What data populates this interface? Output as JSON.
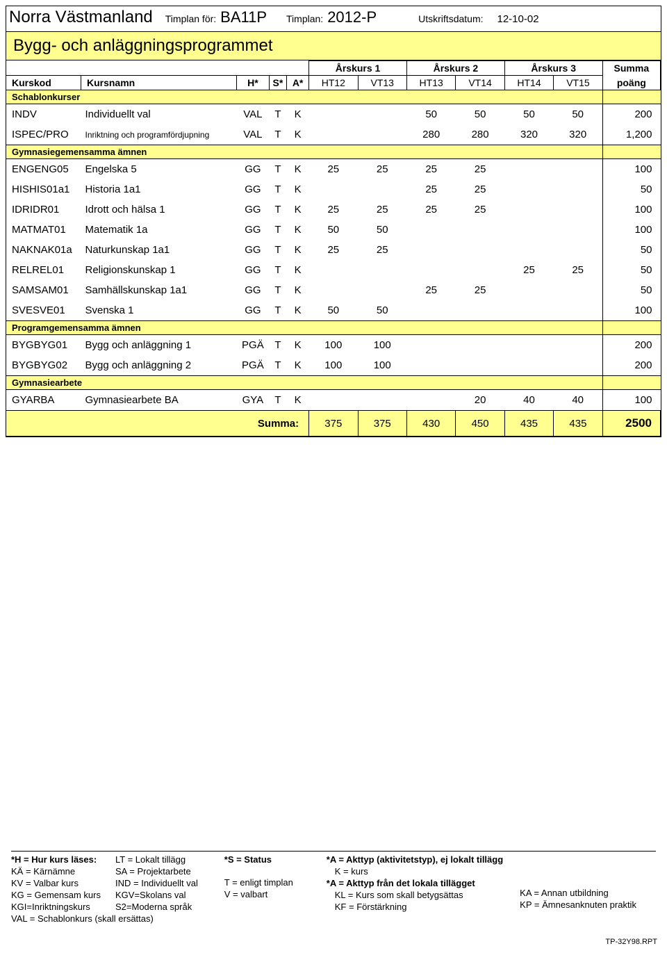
{
  "colors": {
    "highlight": "#ffff8f",
    "border": "#000000",
    "background": "#ffffff"
  },
  "header": {
    "school": "Norra Västmanland",
    "timplan_for_label": "Timplan för:",
    "course_code": "BA11P",
    "timplan_label": "Timplan:",
    "timplan_value": "2012-P",
    "print_date_label": "Utskriftsdatum:",
    "print_date": "12-10-02"
  },
  "program_title": "Bygg- och anläggningsprogrammet",
  "columns": {
    "kurskod": "Kurskod",
    "kursnamn": "Kursnamn",
    "h": "H*",
    "s": "S*",
    "a": "A*",
    "year1": "Årskurs 1",
    "year2": "Årskurs 2",
    "year3": "Årskurs 3",
    "summa": "Summa",
    "poang": "poäng",
    "ht12": "HT12",
    "vt13": "VT13",
    "ht13": "HT13",
    "vt14": "VT14",
    "ht14": "HT14",
    "vt15": "VT15"
  },
  "sections": [
    {
      "title": "Schablonkurser",
      "rows": [
        {
          "code": "INDV",
          "name": "Individuellt val",
          "h": "VAL",
          "s": "T",
          "a": "K",
          "terms": [
            "",
            "",
            "50",
            "50",
            "50",
            "50"
          ],
          "sum": "200"
        },
        {
          "code": "ISPEC/PRO",
          "name": "Inriktning och programfördjupning",
          "name_small": true,
          "h": "VAL",
          "s": "T",
          "a": "K",
          "terms": [
            "",
            "",
            "280",
            "280",
            "320",
            "320"
          ],
          "sum": "1,200"
        }
      ]
    },
    {
      "title": "Gymnasiegemensamma ämnen",
      "rows": [
        {
          "code": "ENGENG05",
          "name": "Engelska 5",
          "h": "GG",
          "s": "T",
          "a": "K",
          "terms": [
            "25",
            "25",
            "25",
            "25",
            "",
            ""
          ],
          "sum": "100"
        },
        {
          "code": "HISHIS01a1",
          "name": "Historia 1a1",
          "h": "GG",
          "s": "T",
          "a": "K",
          "terms": [
            "",
            "",
            "25",
            "25",
            "",
            ""
          ],
          "sum": "50"
        },
        {
          "code": "IDRIDR01",
          "name": "Idrott och hälsa 1",
          "h": "GG",
          "s": "T",
          "a": "K",
          "terms": [
            "25",
            "25",
            "25",
            "25",
            "",
            ""
          ],
          "sum": "100"
        },
        {
          "code": "MATMAT01",
          "name": "Matematik 1a",
          "h": "GG",
          "s": "T",
          "a": "K",
          "terms": [
            "50",
            "50",
            "",
            "",
            "",
            ""
          ],
          "sum": "100"
        },
        {
          "code": "NAKNAK01a",
          "name": "Naturkunskap 1a1",
          "h": "GG",
          "s": "T",
          "a": "K",
          "terms": [
            "25",
            "25",
            "",
            "",
            "",
            ""
          ],
          "sum": "50"
        },
        {
          "code": "RELREL01",
          "name": "Religionskunskap 1",
          "h": "GG",
          "s": "T",
          "a": "K",
          "terms": [
            "",
            "",
            "",
            "",
            "25",
            "25"
          ],
          "sum": "50"
        },
        {
          "code": "SAMSAM01",
          "name": "Samhällskunskap 1a1",
          "h": "GG",
          "s": "T",
          "a": "K",
          "terms": [
            "",
            "",
            "25",
            "25",
            "",
            ""
          ],
          "sum": "50"
        },
        {
          "code": "SVESVE01",
          "name": "Svenska 1",
          "h": "GG",
          "s": "T",
          "a": "K",
          "terms": [
            "50",
            "50",
            "",
            "",
            "",
            ""
          ],
          "sum": "100"
        }
      ]
    },
    {
      "title": "Programgemensamma ämnen",
      "rows": [
        {
          "code": "BYGBYG01",
          "name": "Bygg och anläggning 1",
          "h": "PGÄ",
          "s": "T",
          "a": "K",
          "terms": [
            "100",
            "100",
            "",
            "",
            "",
            ""
          ],
          "sum": "200"
        },
        {
          "code": "BYGBYG02",
          "name": "Bygg och anläggning 2",
          "h": "PGÄ",
          "s": "T",
          "a": "K",
          "terms": [
            "100",
            "100",
            "",
            "",
            "",
            ""
          ],
          "sum": "200"
        }
      ]
    },
    {
      "title": "Gymnasiearbete",
      "rows": [
        {
          "code": "GYARBA",
          "name": "Gymnasiearbete BA",
          "h": "GYA",
          "s": "T",
          "a": "K",
          "terms": [
            "",
            "",
            "",
            "20",
            "40",
            "40"
          ],
          "sum": "100"
        }
      ]
    }
  ],
  "totals": {
    "label": "Summa:",
    "terms": [
      "375",
      "375",
      "430",
      "450",
      "435",
      "435"
    ],
    "sum": "2500"
  },
  "legend": {
    "col1_title": "*H = Hur kurs läses:",
    "col1": [
      "KÄ = Kärnämne",
      "KV = Valbar kurs",
      "KG = Gemensam kurs",
      "KGI=Inriktningskurs",
      "VAL = Schablonkurs (skall ersättas)"
    ],
    "col2_top": "LT = Lokalt tillägg",
    "col2": [
      "SA = Projektarbete",
      "IND = Individuellt val",
      "KGV=Skolans val",
      "S2=Moderna språk"
    ],
    "col3_title": "*S = Status",
    "col3": [
      "T = enligt timplan",
      "V = valbart"
    ],
    "col4_title": "*A = Akttyp (aktivitetstyp), ej lokalt tillägg",
    "col4a": "K = kurs",
    "col4_sub": "*A = Akttyp från det lokala tillägget",
    "col4": [
      "KL = Kurs som skall betygsättas",
      "KF = Förstärkning"
    ],
    "col5": [
      "KA = Annan utbildning",
      "KP = Ämnesanknuten praktik"
    ]
  },
  "report_id": "TP-32Y98.RPT"
}
